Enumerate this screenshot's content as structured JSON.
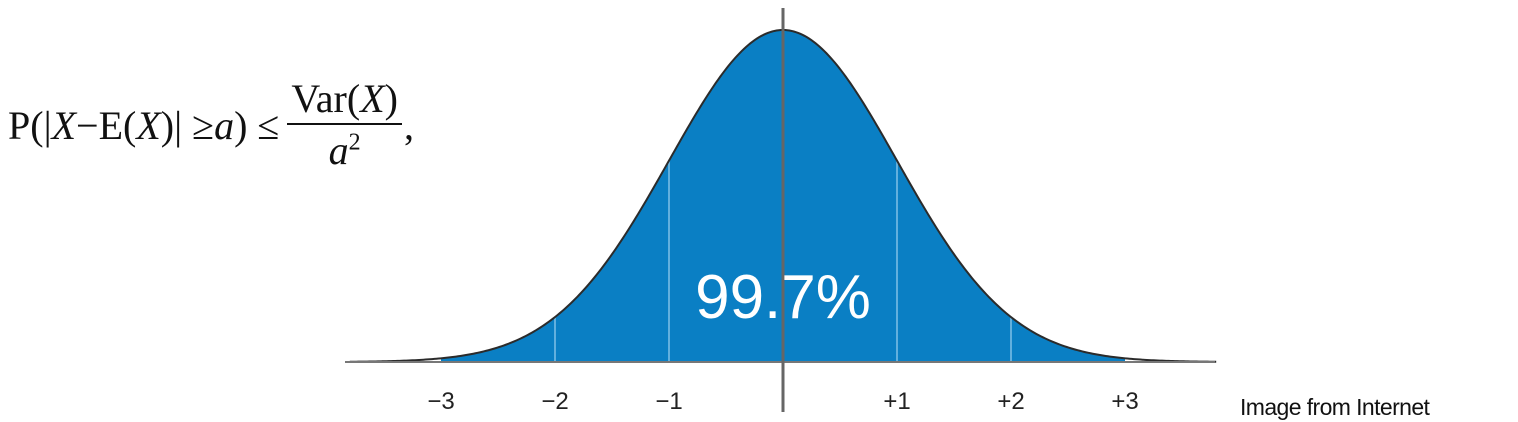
{
  "formula": {
    "prob_open": "P(|",
    "var_x1": "X",
    "minus": " − ",
    "exp": "E(",
    "var_x2": "X",
    "close_ge": ")| ≥ ",
    "var_a1": "a",
    "close_le": ") ≤ ",
    "num_var": "Var(",
    "num_x": "X",
    "num_close": ")",
    "den_a": "a",
    "den_pow": "2",
    "trailing": ","
  },
  "credit": "Image from Internet",
  "chart_data": {
    "type": "area",
    "distribution": "standard normal",
    "mean": 0,
    "sd": 1,
    "xlim": [
      -3.8,
      3.8
    ],
    "shaded_range": [
      -3,
      3
    ],
    "shaded_label": "99.7%",
    "ticks": [
      {
        "value": -3,
        "label": "−3"
      },
      {
        "value": -2,
        "label": "−2"
      },
      {
        "value": -1,
        "label": "−1"
      },
      {
        "value": 1,
        "label": "+1"
      },
      {
        "value": 2,
        "label": "+2"
      },
      {
        "value": 3,
        "label": "+3"
      }
    ],
    "sd_lines": [
      -2,
      -1,
      0,
      1,
      2
    ],
    "colors": {
      "fill": "#0a7fc4",
      "curve": "#2b2b2b",
      "axis": "#777777",
      "center_line": "#666666",
      "sd_lines": "#7fc0e6",
      "label": "#ffffff"
    }
  }
}
